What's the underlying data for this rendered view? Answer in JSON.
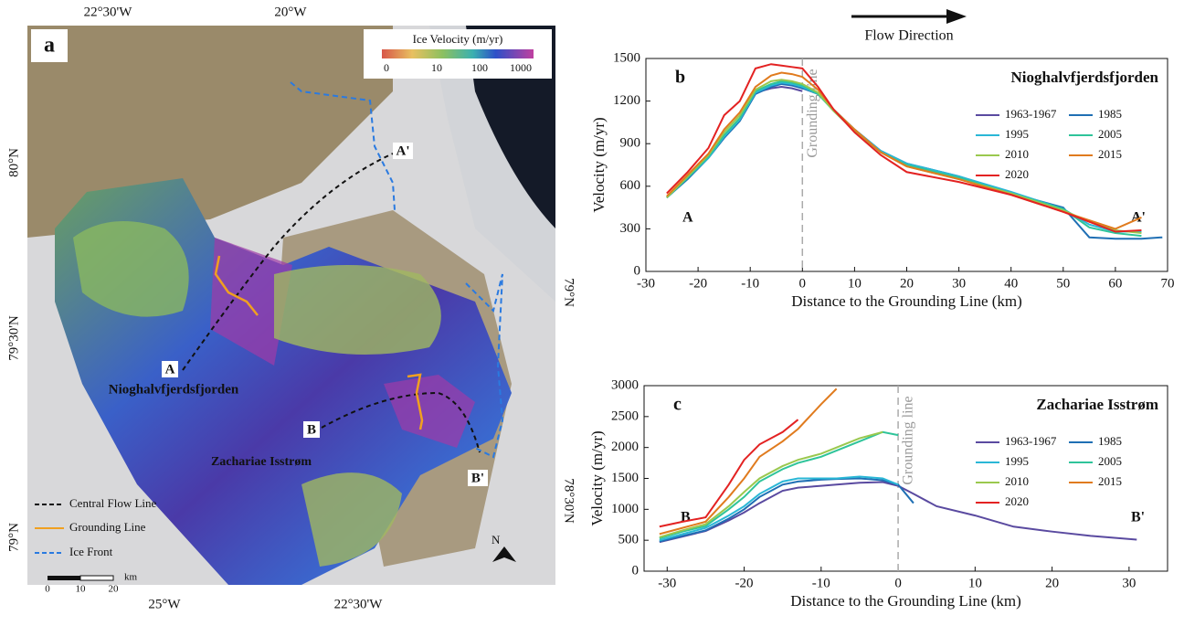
{
  "flow_direction": "Flow Direction",
  "map": {
    "panel": "a",
    "colorbar_title": "Ice Velocity (m/yr)",
    "colorbar_ticks": [
      "0",
      "10",
      "100",
      "1000"
    ],
    "top_lon": [
      "22°30'W",
      "20°W"
    ],
    "bottom_lon": [
      "25°W",
      "22°30'W"
    ],
    "left_lat": [
      "80°N",
      "79°30'N",
      "79°N"
    ],
    "right_lat": [
      "79°N",
      "78°30'N"
    ],
    "points": [
      "A",
      "A'",
      "B",
      "B'"
    ],
    "glaciers": [
      "Nioghalvfjerdsfjorden",
      "Zachariae Isstrøm"
    ],
    "legend": [
      "Central Flow Line",
      "Grounding Line",
      "Ice Front"
    ],
    "scale": [
      "0",
      "10",
      "20",
      "km"
    ],
    "north": "N"
  },
  "chart_data": [
    {
      "type": "line",
      "panel": "b",
      "title": "Nioghalvfjerdsfjorden",
      "x_label": "Distance to the Grounding Line (km)",
      "y_label": "Velocity (m/yr)",
      "start_label": "A",
      "end_label": "A'",
      "grounding_label": "Grounding line",
      "x": [
        -26,
        -22,
        -18,
        -15,
        -12,
        -9,
        -6,
        -4,
        -2,
        0,
        3,
        6,
        10,
        15,
        20,
        30,
        40,
        50,
        55,
        60,
        65,
        69
      ],
      "series": [
        {
          "name": "1963-1967",
          "color": "#5a4aa0",
          "values": [
            null,
            null,
            null,
            null,
            null,
            1260,
            1290,
            1300,
            1290,
            1270,
            null,
            null,
            null,
            null,
            null,
            null,
            null,
            null,
            null,
            null,
            null,
            null
          ]
        },
        {
          "name": "1985",
          "color": "#1f6fb4",
          "values": [
            520,
            650,
            800,
            940,
            1060,
            1250,
            1300,
            1320,
            1310,
            1290,
            1250,
            1140,
            1000,
            850,
            760,
            670,
            550,
            450,
            240,
            230,
            230,
            240
          ]
        },
        {
          "name": "1995",
          "color": "#2ab7d6",
          "values": [
            520,
            660,
            800,
            950,
            1070,
            1260,
            1310,
            1330,
            1320,
            1300,
            1250,
            1140,
            1000,
            850,
            760,
            670,
            560,
            440,
            330,
            280,
            280,
            null
          ]
        },
        {
          "name": "2005",
          "color": "#2fc49a",
          "values": [
            520,
            660,
            810,
            960,
            1080,
            1270,
            1320,
            1340,
            1330,
            1310,
            1250,
            1130,
            990,
            840,
            750,
            660,
            550,
            440,
            310,
            270,
            250,
            null
          ]
        },
        {
          "name": "2010",
          "color": "#9ac84e",
          "values": [
            520,
            670,
            820,
            980,
            1100,
            1280,
            1340,
            1350,
            1340,
            1320,
            1260,
            1130,
            990,
            840,
            740,
            650,
            550,
            430,
            350,
            290,
            270,
            null
          ]
        },
        {
          "name": "2015",
          "color": "#e07b1e",
          "values": [
            530,
            680,
            830,
            1000,
            1120,
            1300,
            1380,
            1400,
            1390,
            1370,
            1280,
            1140,
            1000,
            840,
            740,
            650,
            540,
            420,
            360,
            300,
            380,
            null
          ]
        },
        {
          "name": "2020",
          "color": "#e32222",
          "values": [
            550,
            700,
            870,
            1100,
            1200,
            1430,
            1460,
            1450,
            1440,
            1430,
            1300,
            1140,
            980,
            820,
            700,
            630,
            540,
            420,
            350,
            280,
            290,
            null
          ]
        }
      ],
      "xlim": [
        -30,
        70
      ],
      "ylim": [
        0,
        1500
      ],
      "xticks": [
        -30,
        -20,
        -10,
        0,
        10,
        20,
        30,
        40,
        50,
        60,
        70
      ],
      "yticks": [
        0,
        300,
        600,
        900,
        1200,
        1500
      ]
    },
    {
      "type": "line",
      "panel": "c",
      "title": "Zachariae Isstrøm",
      "x_label": "Distance to the Grounding Line (km)",
      "y_label": "Velocity (m/yr)",
      "start_label": "B",
      "end_label": "B'",
      "grounding_label": "Grounding line",
      "x": [
        -31,
        -28,
        -25,
        -22,
        -20,
        -18,
        -15,
        -13,
        -10,
        -8,
        -5,
        -2,
        0,
        2,
        5,
        10,
        15,
        20,
        25,
        31
      ],
      "series": [
        {
          "name": "1963-1967",
          "color": "#5a4aa0",
          "values": [
            470,
            560,
            650,
            820,
            950,
            1100,
            1300,
            1350,
            1380,
            1400,
            1430,
            1440,
            1380,
            1250,
            1050,
            900,
            720,
            640,
            570,
            510
          ]
        },
        {
          "name": "1985",
          "color": "#1f6fb4",
          "values": [
            480,
            570,
            660,
            850,
            1000,
            1200,
            1400,
            1450,
            1480,
            1490,
            1500,
            1470,
            1400,
            1100,
            null,
            null,
            null,
            null,
            null,
            null
          ]
        },
        {
          "name": "1995",
          "color": "#2ab7d6",
          "values": [
            500,
            600,
            700,
            900,
            1050,
            1250,
            1450,
            1500,
            1500,
            1500,
            1530,
            1500,
            1400,
            null,
            null,
            null,
            null,
            null,
            null,
            null
          ]
        },
        {
          "name": "2005",
          "color": "#2fc49a",
          "values": [
            530,
            640,
            730,
            1000,
            1200,
            1450,
            1650,
            1750,
            1850,
            1950,
            2100,
            2250,
            2200,
            null,
            null,
            null,
            null,
            null,
            null,
            null
          ]
        },
        {
          "name": "2010",
          "color": "#9ac84e",
          "values": [
            550,
            660,
            760,
            1050,
            1280,
            1500,
            1700,
            1800,
            1900,
            2000,
            2150,
            2250,
            null,
            null,
            null,
            null,
            null,
            null,
            null,
            null
          ]
        },
        {
          "name": "2015",
          "color": "#e07b1e",
          "values": [
            600,
            700,
            800,
            1200,
            1500,
            1850,
            2100,
            2300,
            2700,
            2950,
            null,
            null,
            null,
            null,
            null,
            null,
            null,
            null,
            null,
            null
          ]
        },
        {
          "name": "2020",
          "color": "#e32222",
          "values": [
            720,
            800,
            870,
            1400,
            1800,
            2050,
            2250,
            2450,
            null,
            null,
            null,
            null,
            null,
            null,
            null,
            null,
            null,
            null,
            null,
            null
          ]
        }
      ],
      "xlim": [
        -33,
        35
      ],
      "ylim": [
        0,
        3000
      ],
      "xticks": [
        -30,
        -20,
        -10,
        0,
        10,
        20,
        30
      ],
      "yticks": [
        0,
        500,
        1000,
        1500,
        2000,
        2500,
        3000
      ]
    }
  ]
}
